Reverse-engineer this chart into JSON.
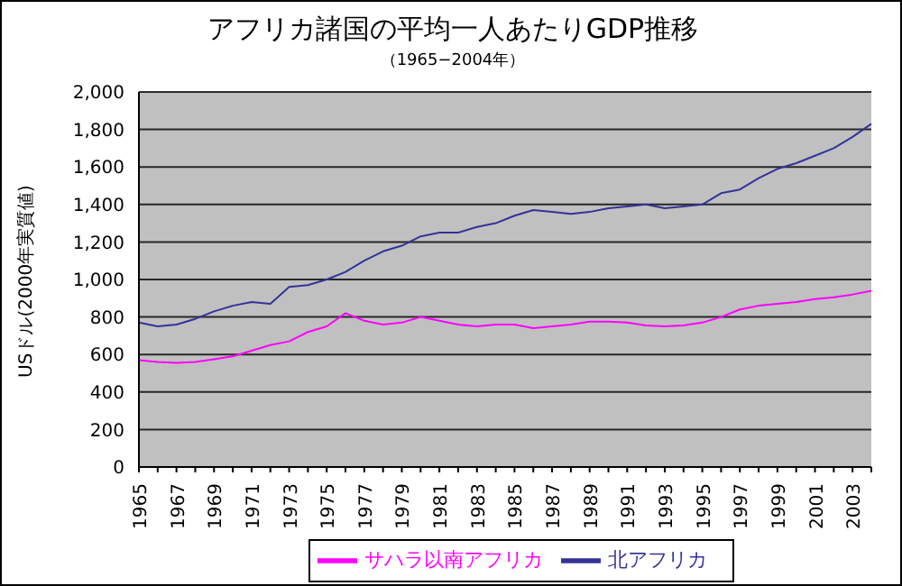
{
  "chart_data": {
    "type": "line",
    "title": "アフリカ諸国の平均一人あたりGDP推移",
    "subtitle": "（1965−2004年）",
    "ylabel": "USドル(2000年実質値)",
    "categories": [
      "1965",
      null,
      "1967",
      null,
      "1969",
      null,
      "1971",
      null,
      "1973",
      null,
      "1975",
      null,
      "1977",
      null,
      "1979",
      null,
      "1981",
      null,
      "1983",
      null,
      "1985",
      null,
      "1987",
      null,
      "1989",
      null,
      "1991",
      null,
      "1993",
      null,
      "1995",
      null,
      "1997",
      null,
      "1999",
      null,
      "2001",
      null,
      "2003",
      null
    ],
    "series": [
      {
        "name": "北アフリカ",
        "color": "#333399",
        "values": [
          770,
          750,
          760,
          790,
          830,
          860,
          880,
          870,
          960,
          970,
          1000,
          1040,
          1100,
          1150,
          1180,
          1230,
          1250,
          1250,
          1280,
          1300,
          1340,
          1370,
          1360,
          1350,
          1360,
          1380,
          1390,
          1400,
          1380,
          1390,
          1400,
          1460,
          1480,
          1540,
          1590,
          1620,
          1660,
          1700,
          1760,
          1830
        ]
      },
      {
        "name": "サハラ以南アフリカ",
        "color": "#ff00ff",
        "values": [
          570,
          560,
          555,
          560,
          575,
          590,
          620,
          650,
          670,
          720,
          750,
          820,
          780,
          760,
          770,
          800,
          780,
          760,
          750,
          760,
          760,
          740,
          750,
          760,
          775,
          775,
          770,
          755,
          750,
          755,
          770,
          800,
          840,
          860,
          870,
          880,
          895,
          905,
          920,
          940
        ]
      }
    ],
    "ylim": [
      0,
      2000
    ],
    "yticks": [
      {
        "value": 0,
        "label": "0"
      },
      {
        "value": 200,
        "label": "200"
      },
      {
        "value": 400,
        "label": "400"
      },
      {
        "value": 600,
        "label": "600"
      },
      {
        "value": 800,
        "label": "800"
      },
      {
        "value": 1000,
        "label": "1,000"
      },
      {
        "value": 1200,
        "label": "1,200"
      },
      {
        "value": 1400,
        "label": "1,400"
      },
      {
        "value": 1600,
        "label": "1,600"
      },
      {
        "value": 1800,
        "label": "1,800"
      },
      {
        "value": 2000,
        "label": "2,000"
      }
    ],
    "grid": "y",
    "legend": "bottom",
    "marker": "none",
    "line_style": "solid"
  }
}
